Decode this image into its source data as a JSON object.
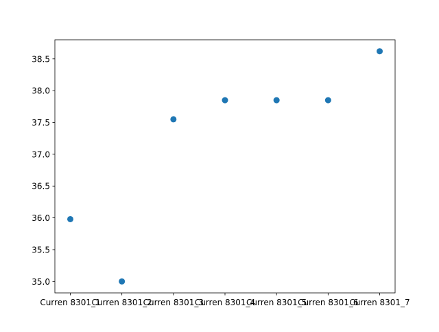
{
  "chart_data": {
    "type": "scatter",
    "categories": [
      "Curren 8301_1",
      "Curren 8301_2",
      "Curren 8301_3",
      "Curren 8301_4",
      "Curren 8301_5",
      "Curren 8301_6",
      "Curren 8301_7"
    ],
    "values": [
      35.98,
      35.0,
      37.55,
      37.85,
      37.85,
      37.85,
      38.62
    ],
    "yticks": [
      35.0,
      35.5,
      36.0,
      36.5,
      37.0,
      37.5,
      38.0,
      38.5
    ],
    "ylim": [
      34.82,
      38.8
    ],
    "title": "",
    "xlabel": "",
    "ylabel": "",
    "grid": false,
    "marker_color": "#1f77b4"
  }
}
